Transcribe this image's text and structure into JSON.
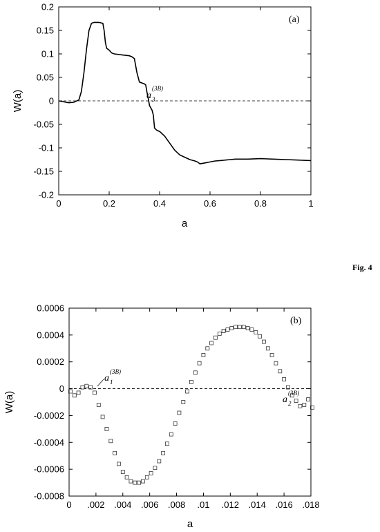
{
  "figure_label": "Fig. 4",
  "chart_data": [
    {
      "type": "line",
      "panel_label": "(a)",
      "xlabel": "a",
      "ylabel": "W(a)",
      "xlim": [
        0,
        1
      ],
      "ylim": [
        -0.2,
        0.2
      ],
      "x_ticks": [
        0,
        0.2,
        0.4,
        0.6,
        0.8,
        1
      ],
      "x_tick_labels": [
        "0",
        "0.2",
        "0.4",
        "0.6",
        "0.8",
        "1"
      ],
      "y_ticks": [
        -0.2,
        -0.15,
        -0.1,
        -0.05,
        0,
        0.05,
        0.1,
        0.15,
        0.2
      ],
      "y_tick_labels": [
        "-0.2",
        "-0.15",
        "-0.1",
        "-0.05",
        "0",
        "0.05",
        "0.1",
        "0.15",
        "0.2"
      ],
      "reference_line": {
        "y": 0,
        "style": "dashed"
      },
      "annotation": {
        "base": "a",
        "subscript": "3",
        "superscript": "(3B)",
        "x": 0.345,
        "y": 0.0
      },
      "series": [
        {
          "x": [
            0,
            0.02,
            0.04,
            0.06,
            0.08,
            0.09,
            0.1,
            0.11,
            0.12,
            0.13,
            0.14,
            0.16,
            0.175,
            0.18,
            0.185,
            0.19,
            0.2,
            0.205,
            0.21,
            0.22,
            0.25,
            0.28,
            0.29,
            0.3,
            0.31,
            0.32,
            0.34,
            0.345,
            0.35,
            0.355,
            0.36,
            0.37,
            0.375,
            0.38,
            0.39,
            0.4,
            0.42,
            0.44,
            0.46,
            0.48,
            0.5,
            0.52,
            0.54,
            0.55,
            0.56,
            0.58,
            0.6,
            0.62,
            0.64,
            0.66,
            0.68,
            0.7,
            0.75,
            0.8,
            0.85,
            0.9,
            0.95,
            1
          ],
          "y": [
            0,
            -0.002,
            -0.004,
            -0.003,
            0.002,
            0.02,
            0.06,
            0.11,
            0.15,
            0.165,
            0.167,
            0.167,
            0.165,
            0.15,
            0.125,
            0.112,
            0.108,
            0.105,
            0.102,
            0.1,
            0.098,
            0.096,
            0.094,
            0.09,
            0.06,
            0.04,
            0.036,
            0.034,
            0.018,
            0.005,
            -0.01,
            -0.02,
            -0.03,
            -0.058,
            -0.063,
            -0.065,
            -0.075,
            -0.09,
            -0.105,
            -0.115,
            -0.12,
            -0.125,
            -0.128,
            -0.13,
            -0.134,
            -0.132,
            -0.13,
            -0.128,
            -0.127,
            -0.126,
            -0.125,
            -0.124,
            -0.124,
            -0.123,
            -0.124,
            -0.125,
            -0.126,
            -0.127
          ]
        }
      ]
    },
    {
      "type": "scatter",
      "panel_label": "(b)",
      "xlabel": "a",
      "ylabel": "W(a)",
      "xlim": [
        0,
        0.018
      ],
      "ylim": [
        -0.0008,
        0.0006
      ],
      "x_ticks": [
        0,
        0.002,
        0.004,
        0.006,
        0.008,
        0.01,
        0.012,
        0.014,
        0.016,
        0.018
      ],
      "x_tick_labels": [
        "0",
        ".002",
        ".004",
        ".006",
        ".008",
        ".01",
        ".012",
        ".014",
        ".016",
        ".018"
      ],
      "y_ticks": [
        -0.0008,
        -0.0006,
        -0.0004,
        -0.0002,
        0,
        0.0002,
        0.0004,
        0.0006
      ],
      "y_tick_labels": [
        "-0.0008",
        "-0.0006",
        "-0.0004",
        "-0.0002",
        "0",
        "0.0002",
        "0.0004",
        "0.0006"
      ],
      "reference_line": {
        "y": 0,
        "style": "dashed"
      },
      "annotations": [
        {
          "base": "a",
          "subscript": "1",
          "superscript": "(3B)",
          "x": 0.00195,
          "y": 0.0
        },
        {
          "base": "a",
          "subscript": "2",
          "superscript": "(3B)",
          "x": 0.0175,
          "y": 0.0
        }
      ],
      "series": [
        {
          "marker": "square",
          "x": [
            0.0001,
            0.0004,
            0.0007,
            0.001,
            0.0013,
            0.0016,
            0.0019,
            0.0022,
            0.0025,
            0.0028,
            0.0031,
            0.0034,
            0.0037,
            0.004,
            0.0043,
            0.0046,
            0.0049,
            0.0052,
            0.0055,
            0.0058,
            0.0061,
            0.0064,
            0.0067,
            0.007,
            0.0073,
            0.0076,
            0.0079,
            0.0082,
            0.0085,
            0.0088,
            0.0091,
            0.0094,
            0.0097,
            0.01,
            0.0103,
            0.0106,
            0.0109,
            0.0112,
            0.0115,
            0.0118,
            0.0121,
            0.0124,
            0.0127,
            0.013,
            0.0133,
            0.0136,
            0.0139,
            0.0142,
            0.0145,
            0.0148,
            0.0151,
            0.0154,
            0.0157,
            0.016,
            0.0163,
            0.0166,
            0.0169,
            0.0172,
            0.0175,
            0.0178,
            0.0181
          ],
          "y": [
            -2e-05,
            -5e-05,
            -3e-05,
            1e-05,
            2e-05,
            1e-05,
            -3e-05,
            -0.00012,
            -0.00021,
            -0.0003,
            -0.00039,
            -0.00048,
            -0.00056,
            -0.00062,
            -0.00066,
            -0.00069,
            -0.0007,
            -0.0007,
            -0.00069,
            -0.00066,
            -0.00063,
            -0.00059,
            -0.00054,
            -0.00048,
            -0.00041,
            -0.00034,
            -0.00026,
            -0.00018,
            -0.0001,
            -2e-05,
            5e-05,
            0.00012,
            0.00019,
            0.00025,
            0.0003,
            0.00034,
            0.00038,
            0.00041,
            0.00043,
            0.00044,
            0.00045,
            0.00046,
            0.00046,
            0.00046,
            0.00045,
            0.00044,
            0.00042,
            0.00039,
            0.00035,
            0.0003,
            0.00025,
            0.00019,
            0.00013,
            7e-05,
            1e-05,
            -5e-05,
            -9e-05,
            -0.00013,
            -0.00012,
            -8e-05,
            -0.00014
          ]
        }
      ]
    }
  ]
}
